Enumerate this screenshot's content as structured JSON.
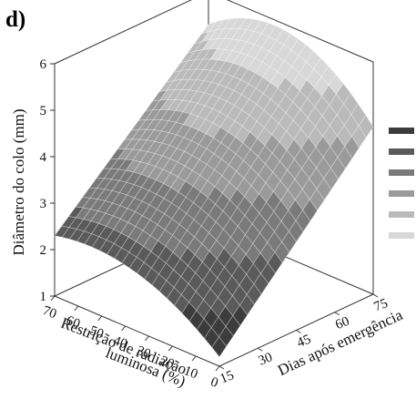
{
  "panel_label": "d)",
  "chart_data": {
    "type": "surface3d",
    "zlabel": "Diâmetro do colo (mm)",
    "xlabel": "Restrição de radiação luminosa (%)",
    "xlabel_line1": "Restrição de radiação",
    "xlabel_line2": "luminosa (%)",
    "ylabel": "Dias após emergência",
    "x_ticks": [
      70,
      60,
      50,
      40,
      30,
      20,
      10,
      0
    ],
    "y_ticks": [
      15,
      30,
      45,
      60,
      75
    ],
    "z_ticks": [
      1,
      2,
      3,
      4,
      5,
      6
    ],
    "xlim": [
      0,
      70
    ],
    "ylim": [
      15,
      75
    ],
    "zlim": [
      1,
      6
    ],
    "grid": false,
    "legend_position": "right",
    "legend_swatch_colors": [
      "#3c3c3c",
      "#5a5a5a",
      "#7a7a7a",
      "#9a9a9a",
      "#bababa",
      "#d8d8d8"
    ],
    "corner_values": [
      {
        "restricao": 70,
        "dias": 15,
        "diametro": 2.3
      },
      {
        "restricao": 0,
        "dias": 15,
        "diametro": 1.2
      },
      {
        "restricao": 70,
        "dias": 75,
        "diametro": 5.3
      },
      {
        "restricao": 0,
        "dias": 75,
        "diametro": 4.6
      }
    ],
    "peak": {
      "restricao": 40,
      "dias": 75,
      "diametro": 5.9
    },
    "contour_levels": [
      2,
      3,
      4,
      5
    ]
  }
}
